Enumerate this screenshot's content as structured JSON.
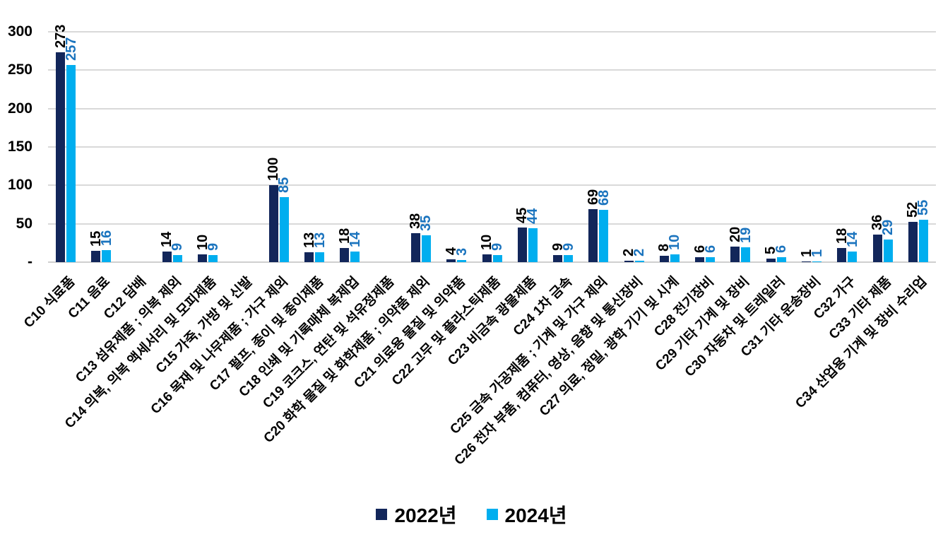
{
  "chart_data": {
    "type": "bar",
    "title": "",
    "xlabel": "",
    "ylabel": "",
    "grid": true,
    "grid_color": "#D9D9D9",
    "legend_position": "bottom",
    "y_axis": {
      "max": 300,
      "tick_values": [
        0,
        50,
        100,
        150,
        200,
        250,
        300
      ],
      "tick_labels": [
        "-",
        "50",
        "100",
        "150",
        "200",
        "250",
        "300"
      ]
    },
    "categories": [
      "C10 식료품",
      "C11 음료",
      "C12 담배",
      "C13 섬유제품 ; 의복 제외",
      "C14 의복, 의복 액세서리 및 모피제품",
      "C15 가죽, 가방 및 신발",
      "C16 목재 및 나무제품 ; 가구 제외",
      "C17 펄프, 종이 및 종이제품",
      "C18 인쇄 및 기록매체 복제업",
      "C19 코크스, 연탄 및 석유정제품",
      "C20 화학 물질 및 화학제품 ; 의약품 제외",
      "C21 의료용 물질 및 의약품",
      "C22 고무 및 플라스틱제품",
      "C23 비금속 광물제품",
      "C24 1차 금속",
      "C25 금속 가공제품 ; 기계 및 가구 제외",
      "C26 전자 부품, 컴퓨터, 영상, 음향 및 통신장비",
      "C27 의료, 정밀, 광학 기기 및 시계",
      "C28 전기장비",
      "C29 기타 기계 및 장비",
      "C30 자동차 및 트레일러",
      "C31 기타 운송장비",
      "C32 가구",
      "C33 기타 제품",
      "C34 산업용 기계 및 장비 수리업"
    ],
    "series": [
      {
        "name": "2022년",
        "bar_color": "#12265A",
        "label_color": "#000000",
        "values": [
          273,
          15,
          null,
          14,
          10,
          null,
          100,
          13,
          18,
          null,
          38,
          4,
          10,
          45,
          9,
          69,
          2,
          8,
          6,
          20,
          5,
          1,
          18,
          36,
          52
        ]
      },
      {
        "name": "2024년",
        "bar_color": "#00AEEF",
        "label_color": "#1B74BE",
        "values": [
          257,
          16,
          null,
          9,
          9,
          null,
          85,
          13,
          14,
          null,
          35,
          3,
          9,
          44,
          9,
          68,
          2,
          10,
          6,
          19,
          6,
          1,
          14,
          29,
          55
        ]
      }
    ]
  }
}
